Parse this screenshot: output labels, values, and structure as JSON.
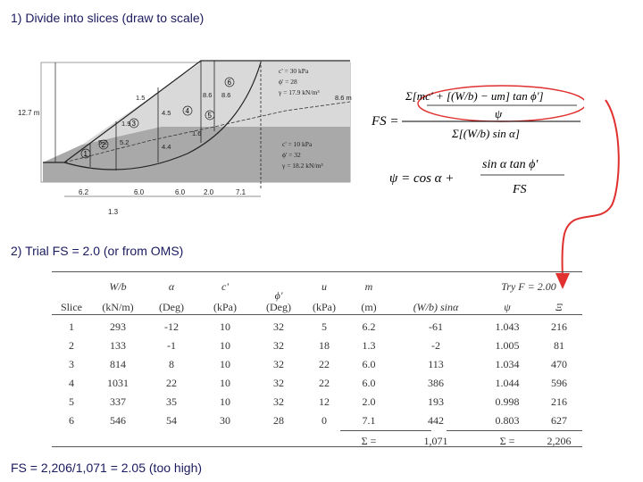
{
  "headings": {
    "step1": "1) Divide into slices (draw to scale)",
    "step2": "2) Trial FS = 2.0 (or from OMS)",
    "result": "FS = 2,206/1,071 = 2.05 (too high)"
  },
  "slope_figure": {
    "height_label": "12.7 m",
    "slice_numbers": [
      "1",
      "2",
      "3",
      "4",
      "5",
      "6"
    ],
    "slice_heights": [
      "1.5",
      "1.9",
      "5.2",
      "5.2",
      "4.5",
      "4.4",
      "1.6",
      "8.6",
      "8.6",
      "8.6 m"
    ],
    "upper_layer": [
      "c' = 30 kPa",
      "ϕ' = 28",
      "γ = 17.9 kN/m³"
    ],
    "lower_layer": [
      "c' = 10 kPa",
      "ϕ' = 32",
      "γ = 18.2 kN/m³"
    ],
    "widths": [
      "6.2",
      "6.0",
      "6.0",
      "2.0",
      "7.1"
    ],
    "bottom_width": "1.3",
    "colors": {
      "upper_layer": "#d9d9d9",
      "lower_layer": "#a9a9a9",
      "highlight": "#e03030"
    }
  },
  "formula": {
    "fs_lhs": "FS =",
    "numerator": "Σ[mc' + [(W/b) − um] tan ϕ']",
    "numerator_den": "ψ",
    "denominator": "Σ[(W/b) sin α]",
    "psi_lhs": "ψ = cos α +",
    "psi_num": "sin α tan ϕ'",
    "psi_den": "FS"
  },
  "table": {
    "try_label": "Try F = 2.00",
    "header_top": [
      "W/b",
      "α",
      "c'",
      "ϕ'",
      "u",
      "m"
    ],
    "header_bottom": [
      "Slice",
      "(kN/m)",
      "(Deg)",
      "(kPa)",
      "(Deg)",
      "(kPa)",
      "(m)",
      "(W/b) sinα",
      "ψ",
      "Ξ"
    ],
    "rows": [
      [
        "1",
        "293",
        "-12",
        "10",
        "32",
        "5",
        "6.2",
        "-61",
        "1.043",
        "216"
      ],
      [
        "2",
        "133",
        "-1",
        "10",
        "32",
        "18",
        "1.3",
        "-2",
        "1.005",
        "81"
      ],
      [
        "3",
        "814",
        "8",
        "10",
        "32",
        "22",
        "6.0",
        "113",
        "1.034",
        "470"
      ],
      [
        "4",
        "1031",
        "22",
        "10",
        "32",
        "22",
        "6.0",
        "386",
        "1.044",
        "596"
      ],
      [
        "5",
        "337",
        "35",
        "10",
        "32",
        "12",
        "2.0",
        "193",
        "0.998",
        "216"
      ],
      [
        "6",
        "546",
        "54",
        "30",
        "28",
        "0",
        "7.1",
        "442",
        "0.803",
        "627"
      ]
    ],
    "totals": [
      "Σ =",
      "1,071",
      "Σ =",
      "2,206"
    ]
  }
}
